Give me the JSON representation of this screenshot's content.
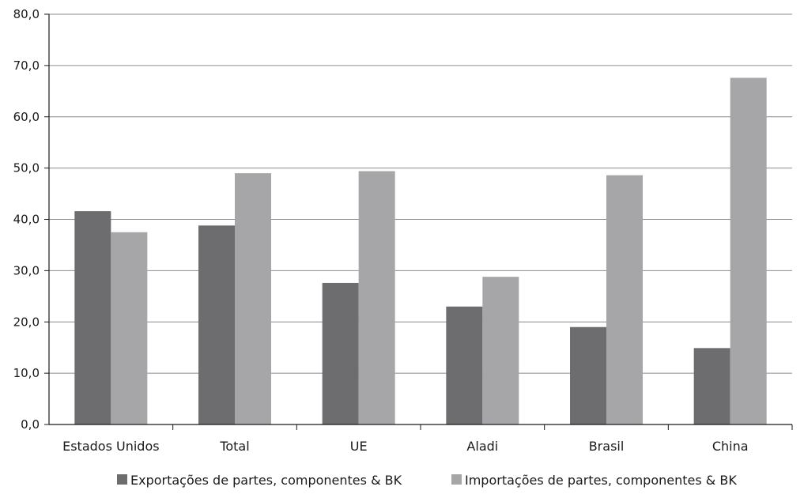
{
  "chart_data": {
    "type": "bar",
    "categories": [
      "Estados Unidos",
      "Total",
      "UE",
      "Aladi",
      "Brasil",
      "China"
    ],
    "series": [
      {
        "name": "Exportações de partes, componentes & BK",
        "color": "#6d6d70",
        "values": [
          41.6,
          38.8,
          27.6,
          23.0,
          19.0,
          14.9
        ]
      },
      {
        "name": "Importações de partes, componentes & BK",
        "color": "#a6a6a9",
        "values": [
          37.5,
          49.0,
          49.4,
          28.8,
          48.6,
          67.6
        ]
      }
    ],
    "y_ticks": [
      "0,0",
      "10,0",
      "20,0",
      "30,0",
      "40,0",
      "50,0",
      "60,0",
      "70,0",
      "80,0"
    ],
    "ylim": [
      0,
      80
    ],
    "grid": true,
    "legend_position": "bottom",
    "title": "",
    "xlabel": "",
    "ylabel": ""
  }
}
